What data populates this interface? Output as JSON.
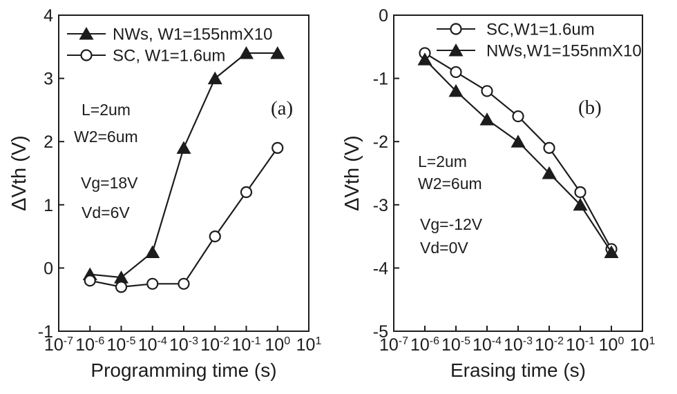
{
  "figure": {
    "background": "#ffffff",
    "ink": "#1c1c1c"
  },
  "chart_data": [
    {
      "type": "line",
      "panel_label": "(a)",
      "xlabel": "Programming time (s)",
      "ylabel": "ΔVth (V)",
      "x_scale": "log",
      "xlim_exp": [
        -7,
        1
      ],
      "x_tick_exp": [
        -7,
        -6,
        -5,
        -4,
        -3,
        -2,
        -1,
        0,
        1
      ],
      "ylim": [
        -1,
        4
      ],
      "y_ticks": [
        -1,
        0,
        1,
        2,
        3,
        4
      ],
      "grid": false,
      "legend_position": "top-left-inside",
      "x_exp": [
        -6,
        -5,
        -4,
        -3,
        -2,
        -1,
        0
      ],
      "series": [
        {
          "name": "NWs, W1=155nmX10",
          "marker": "filled-triangle",
          "values": [
            -0.1,
            -0.15,
            0.25,
            1.9,
            3.0,
            3.4,
            3.4
          ]
        },
        {
          "name": "SC, W1=1.6um",
          "marker": "open-circle",
          "values": [
            -0.2,
            -0.3,
            -0.25,
            -0.25,
            0.5,
            1.2,
            1.9
          ]
        }
      ],
      "annotations": [
        "L=2um",
        "W2=6um",
        "Vg=18V",
        "Vd=6V"
      ]
    },
    {
      "type": "line",
      "panel_label": "(b)",
      "xlabel": "Erasing time (s)",
      "ylabel": "ΔVth (V)",
      "x_scale": "log",
      "xlim_exp": [
        -7,
        1
      ],
      "x_tick_exp": [
        -7,
        -6,
        -5,
        -4,
        -3,
        -2,
        -1,
        0,
        1
      ],
      "ylim": [
        -5,
        0
      ],
      "y_ticks": [
        -5,
        -4,
        -3,
        -2,
        -1,
        0
      ],
      "grid": false,
      "legend_position": "top-inside",
      "x_exp": [
        -6,
        -5,
        -4,
        -3,
        -2,
        -1,
        0
      ],
      "series": [
        {
          "name": "SC,W1=1.6um",
          "marker": "open-circle",
          "values": [
            -0.6,
            -0.9,
            -1.2,
            -1.6,
            -2.1,
            -2.8,
            -3.7
          ]
        },
        {
          "name": "NWs,W1=155nmX10",
          "marker": "filled-triangle",
          "values": [
            -0.7,
            -1.2,
            -1.65,
            -2.0,
            -2.5,
            -3.0,
            -3.75
          ]
        }
      ],
      "annotations": [
        "L=2um",
        "W2=6um",
        "Vg=-12V",
        "Vd=0V"
      ]
    }
  ]
}
